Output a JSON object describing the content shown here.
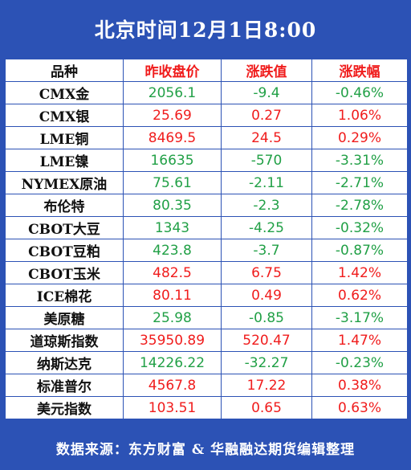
{
  "title": "北京时间12月1日8:00",
  "headers": [
    "品种",
    "昨收盘价",
    "涨跌值",
    "涨跌幅"
  ],
  "colors": {
    "frame": "#2c52b5",
    "up": "#f01c1c",
    "down": "#21a046"
  },
  "rows": [
    {
      "name": "CMX金",
      "close": "2056.1",
      "change": "-9.4",
      "pct": "-0.46%",
      "dir": "down"
    },
    {
      "name": "CMX银",
      "close": "25.69",
      "change": "0.27",
      "pct": "1.06%",
      "dir": "up"
    },
    {
      "name": "LME铜",
      "close": "8469.5",
      "change": "24.5",
      "pct": "0.29%",
      "dir": "up"
    },
    {
      "name": "LME镍",
      "close": "16635",
      "change": "-570",
      "pct": "-3.31%",
      "dir": "down"
    },
    {
      "name": "NYMEX原油",
      "close": "75.61",
      "change": "-2.11",
      "pct": "-2.71%",
      "dir": "down"
    },
    {
      "name": "布伦特",
      "close": "80.35",
      "change": "-2.3",
      "pct": "-2.78%",
      "dir": "down"
    },
    {
      "name": "CBOT大豆",
      "close": "1343",
      "change": "-4.25",
      "pct": "-0.32%",
      "dir": "down"
    },
    {
      "name": "CBOT豆粕",
      "close": "423.8",
      "change": "-3.7",
      "pct": "-0.87%",
      "dir": "down"
    },
    {
      "name": "CBOT玉米",
      "close": "482.5",
      "change": "6.75",
      "pct": "1.42%",
      "dir": "up"
    },
    {
      "name": "ICE棉花",
      "close": "80.11",
      "change": "0.49",
      "pct": "0.62%",
      "dir": "up"
    },
    {
      "name": "美原糖",
      "close": "25.98",
      "change": "-0.85",
      "pct": "-3.17%",
      "dir": "down"
    },
    {
      "name": "道琼斯指数",
      "close": "35950.89",
      "change": "520.47",
      "pct": "1.47%",
      "dir": "up"
    },
    {
      "name": "纳斯达克",
      "close": "14226.22",
      "change": "-32.27",
      "pct": "-0.23%",
      "dir": "down"
    },
    {
      "name": "标准普尔",
      "close": "4567.8",
      "change": "17.22",
      "pct": "0.38%",
      "dir": "up"
    },
    {
      "name": "美元指数",
      "close": "103.51",
      "change": "0.65",
      "pct": "0.63%",
      "dir": "up"
    }
  ],
  "footer": "数据来源：东方财富 & 华融融达期货编辑整理"
}
